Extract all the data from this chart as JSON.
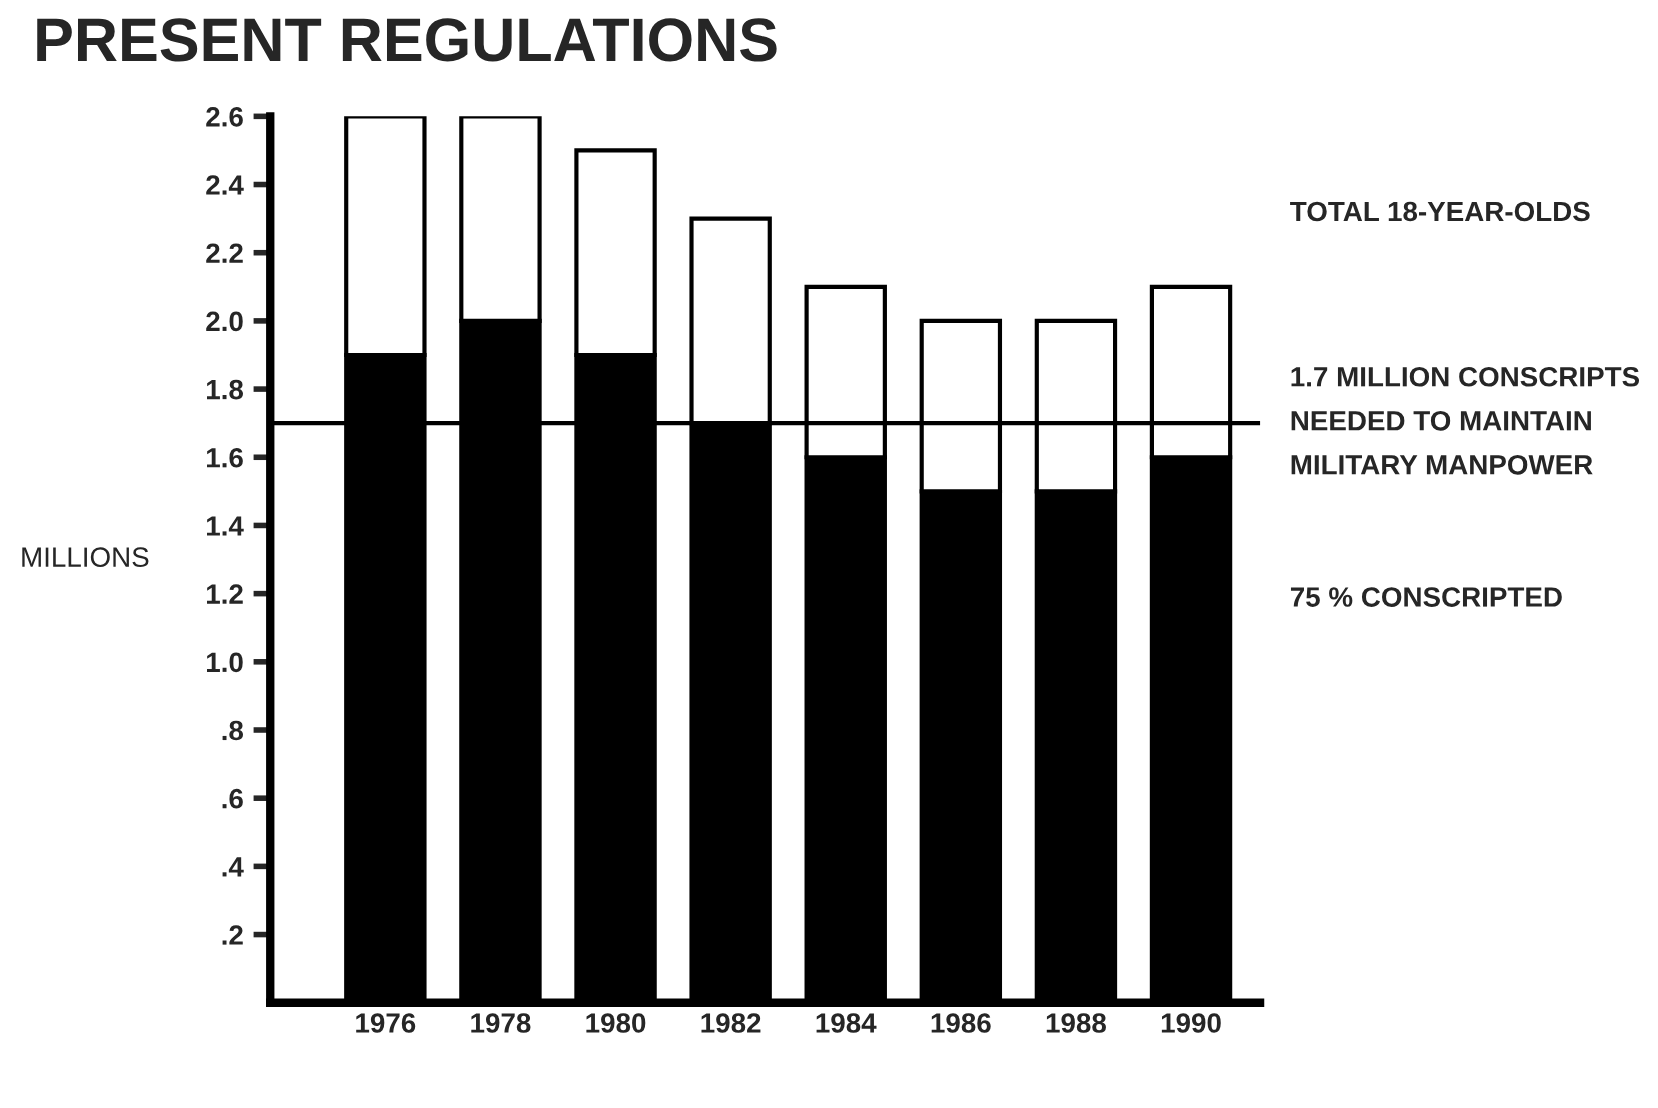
{
  "chart_data": {
    "type": "bar",
    "title": "PRESENT REGULATIONS",
    "ylabel": "MILLIONS",
    "categories": [
      "1976",
      "1978",
      "1980",
      "1982",
      "1984",
      "1986",
      "1988",
      "1990"
    ],
    "stacked": true,
    "series": [
      {
        "color": "#000000",
        "values": [
          1.9,
          2.0,
          1.9,
          1.7,
          1.6,
          1.5,
          1.5,
          1.6
        ]
      },
      {
        "color": "#ffffff",
        "values": [
          0.7,
          0.6,
          0.6,
          0.6,
          0.5,
          0.5,
          0.5,
          0.5
        ]
      }
    ],
    "ylim": [
      0,
      2.6
    ],
    "yticks": [
      {
        "value": 0.2,
        "label": ".2"
      },
      {
        "value": 0.4,
        "label": ".4"
      },
      {
        "value": 0.6,
        "label": ".6"
      },
      {
        "value": 0.8,
        "label": ".8"
      },
      {
        "value": 1.0,
        "label": "1.0"
      },
      {
        "value": 1.2,
        "label": "1.2"
      },
      {
        "value": 1.4,
        "label": "1.4"
      },
      {
        "value": 1.6,
        "label": "1.6"
      },
      {
        "value": 1.8,
        "label": "1.8"
      },
      {
        "value": 2.0,
        "label": "2.0"
      },
      {
        "value": 2.2,
        "label": "2.2"
      },
      {
        "value": 2.4,
        "label": "2.4"
      },
      {
        "value": 2.6,
        "label": "2.6"
      }
    ],
    "ref_lines": [
      {
        "axis": "y",
        "value": 1.7,
        "label": "1.7 MILLION CONSCRIPTS\nNEEDED TO MAINTAIN\nMILITARY MANPOWER",
        "color": "#000000"
      }
    ],
    "annotations": [
      "TOTAL 18-YEAR-OLDS",
      "75 % CONSCRIPTED"
    ],
    "grid": false,
    "legend": false
  }
}
